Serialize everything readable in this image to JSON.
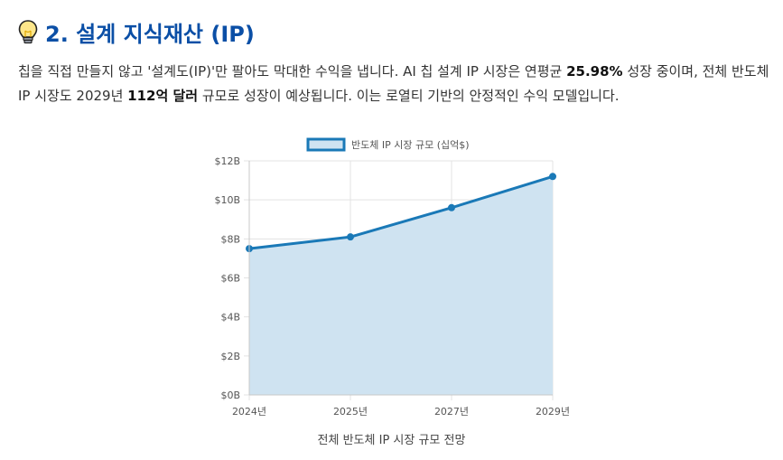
{
  "section": {
    "title": "2. 설계 지식재산 (IP)",
    "icon": "lightbulb-icon",
    "paragraph": {
      "part1": "칩을 직접 만들지 않고 '설계도(IP)'만 팔아도 막대한 수익을 냅니다. AI 칩 설계 IP 시장은 연평균 ",
      "cagr": "25.98%",
      "part2": " 성장 중이며, 전체 반도체 IP 시장도 2029년 ",
      "market_2029": "112억 달러",
      "part3": " 규모로 성장이 예상됩니다. 이는 로열티 기반의 안정적인 수익 모델입니다."
    }
  },
  "chart_data": {
    "type": "area",
    "categories": [
      "2024년",
      "2025년",
      "2027년",
      "2029년"
    ],
    "series": [
      {
        "name": "반도체 IP 시장 규모 (십억$)",
        "values": [
          7.5,
          8.1,
          9.6,
          11.2
        ]
      }
    ],
    "ylim": [
      0,
      12
    ],
    "yticks": [
      0,
      2,
      4,
      6,
      8,
      10,
      12
    ],
    "ytick_labels": [
      "$0B",
      "$2B",
      "$4B",
      "$6B",
      "$8B",
      "$10B",
      "$12B"
    ],
    "grid": true,
    "legend": "top",
    "caption": "전체 반도체 IP 시장 규모 전망",
    "colors": {
      "line": "#1a79b7",
      "fill": "#cfe3f1",
      "grid": "#e3e3e3"
    }
  }
}
